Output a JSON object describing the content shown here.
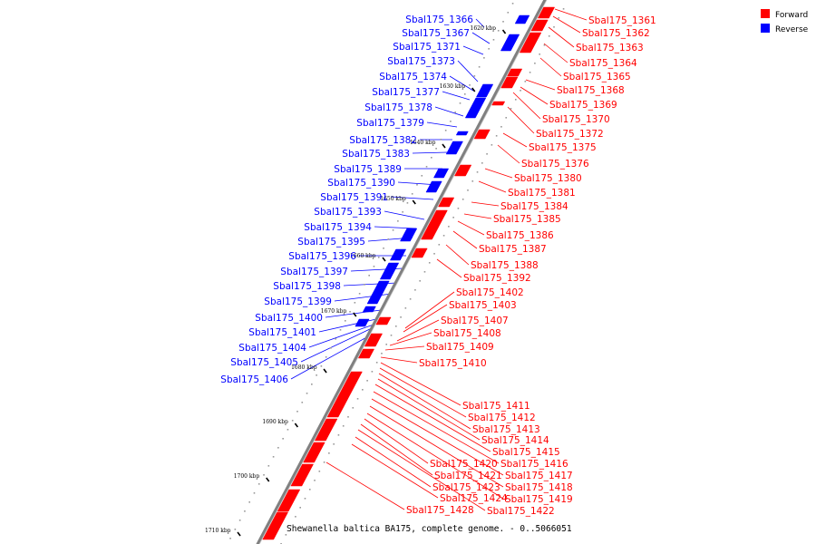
{
  "caption": "Shewanella baltica BA175, complete genome. - 0..5066051",
  "colors": {
    "forward": "#ff0000",
    "reverse": "#0000ff",
    "axis": "#808080"
  },
  "legend": [
    {
      "label": "Forward",
      "color": "#ff0000"
    },
    {
      "label": "Reverse",
      "color": "#0000ff"
    }
  ],
  "ticks": [
    "1620 kbp",
    "1630 kbp",
    "1640 kbp",
    "1650 kbp",
    "1660 kbp",
    "1670 kbp",
    "1680 kbp",
    "1690 kbp",
    "1700 kbp",
    "1710 kbp"
  ],
  "reverse_genes": [
    "Sbal175_1366",
    "Sbal175_1367",
    "Sbal175_1371",
    "Sbal175_1373",
    "Sbal175_1374",
    "Sbal175_1377",
    "Sbal175_1378",
    "Sbal175_1379",
    "Sbal175_1382",
    "Sbal175_1383",
    "Sbal175_1389",
    "Sbal175_1390",
    "Sbal175_1391",
    "Sbal175_1393",
    "Sbal175_1394",
    "Sbal175_1395",
    "Sbal175_1396",
    "Sbal175_1397",
    "Sbal175_1398",
    "Sbal175_1399",
    "Sbal175_1400",
    "Sbal175_1401",
    "Sbal175_1404",
    "Sbal175_1405",
    "Sbal175_1406"
  ],
  "forward_genes": [
    "Sbal175_1361",
    "Sbal175_1362",
    "Sbal175_1363",
    "Sbal175_1364",
    "Sbal175_1365",
    "Sbal175_1368",
    "Sbal175_1369",
    "Sbal175_1370",
    "Sbal175_1372",
    "Sbal175_1375",
    "Sbal175_1376",
    "Sbal175_1380",
    "Sbal175_1381",
    "Sbal175_1384",
    "Sbal175_1385",
    "Sbal175_1386",
    "Sbal175_1387",
    "Sbal175_1388",
    "Sbal175_1392",
    "Sbal175_1402",
    "Sbal175_1403",
    "Sbal175_1407",
    "Sbal175_1408",
    "Sbal175_1409",
    "Sbal175_1410",
    "Sbal175_1411",
    "Sbal175_1412",
    "Sbal175_1413",
    "Sbal175_1414",
    "Sbal175_1415",
    "Sbal175_1416",
    "Sbal175_1417",
    "Sbal175_1418",
    "Sbal175_1419",
    "Sbal175_1420",
    "Sbal175_1421",
    "Sbal175_1422",
    "Sbal175_1423",
    "Sbal175_1424",
    "Sbal175_1428"
  ]
}
